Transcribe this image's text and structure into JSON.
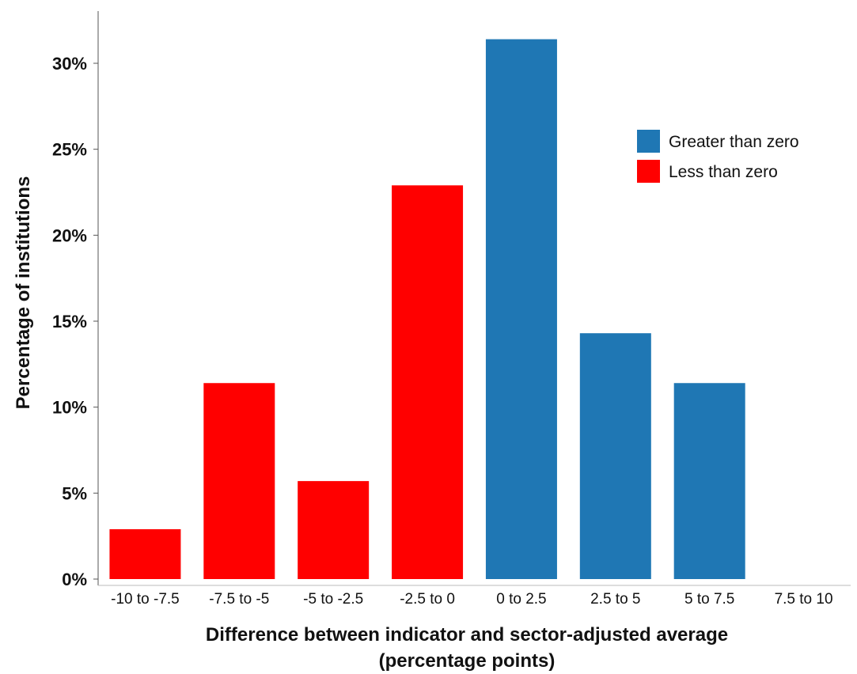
{
  "chart_data": {
    "type": "bar",
    "title": "",
    "xlabel_line1": "Difference between indicator and sector-adjusted average",
    "xlabel_line2": "(percentage points)",
    "ylabel": "Percentage of institutions",
    "ylim": [
      0,
      32
    ],
    "yticks": [
      {
        "value": 0,
        "label": "0%"
      },
      {
        "value": 5,
        "label": "5%"
      },
      {
        "value": 10,
        "label": "10%"
      },
      {
        "value": 15,
        "label": "15%"
      },
      {
        "value": 20,
        "label": "20%"
      },
      {
        "value": 25,
        "label": "25%"
      },
      {
        "value": 30,
        "label": "30%"
      }
    ],
    "categories": [
      "-10 to -7.5",
      "-7.5 to -5",
      "-5 to -2.5",
      "-2.5 to 0",
      "0 to 2.5",
      "2.5 to 5",
      "5 to 7.5",
      "7.5 to 10"
    ],
    "values": [
      2.9,
      11.4,
      5.7,
      22.9,
      31.4,
      14.3,
      11.4,
      0
    ],
    "groups": [
      "Less than zero",
      "Less than zero",
      "Less than zero",
      "Less than zero",
      "Greater than zero",
      "Greater than zero",
      "Greater than zero",
      "Greater than zero"
    ],
    "legend": [
      {
        "name": "Greater than zero",
        "color": "#1f77b4"
      },
      {
        "name": "Less than zero",
        "color": "#ff0000"
      }
    ],
    "legend_position": "top-right",
    "grid": false
  }
}
